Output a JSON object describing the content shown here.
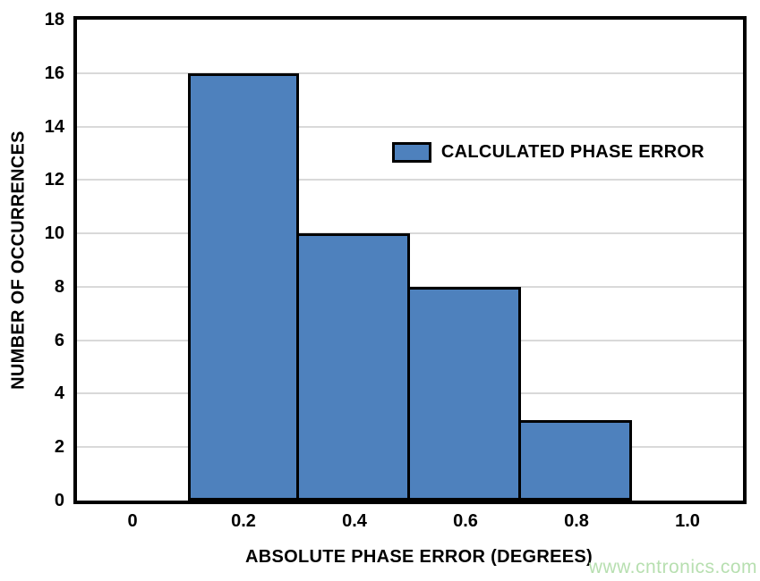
{
  "chart_data": {
    "type": "bar",
    "title": "",
    "xlabel": "ABSOLUTE PHASE ERROR (DEGREES)",
    "ylabel": "NUMBER OF OCCURRENCES",
    "legend": [
      {
        "label": "CALCULATED PHASE ERROR",
        "swatch_color": "#4e81bd"
      }
    ],
    "legend_position": "inside-upper-middle",
    "bins": [
      {
        "x0": 0.1,
        "x1": 0.3,
        "count": 16
      },
      {
        "x0": 0.3,
        "x1": 0.5,
        "count": 10
      },
      {
        "x0": 0.5,
        "x1": 0.7,
        "count": 8
      },
      {
        "x0": 0.7,
        "x1": 0.9,
        "count": 3
      }
    ],
    "xlim": [
      -0.1,
      1.1
    ],
    "ylim": [
      0,
      18
    ],
    "x_tick_values": [
      0,
      0.2,
      0.4,
      0.6,
      0.8,
      1.0
    ],
    "x_ticks": [
      "0",
      "0.2",
      "0.4",
      "0.6",
      "0.8",
      "1.0"
    ],
    "y_tick_values": [
      0,
      2,
      4,
      6,
      8,
      10,
      12,
      14,
      16,
      18
    ],
    "y_ticks": [
      "0",
      "2",
      "4",
      "6",
      "8",
      "10",
      "12",
      "14",
      "16",
      "18"
    ],
    "grid": "horizontal"
  },
  "colors": {
    "bar_fill": "#4e81bd",
    "bar_border": "#000000",
    "gridline": "#d9d9d9",
    "frame": "#000000",
    "text": "#000000",
    "watermark": "#b7dfb0",
    "background": "#ffffff"
  },
  "watermark": "www.cntronics.com"
}
